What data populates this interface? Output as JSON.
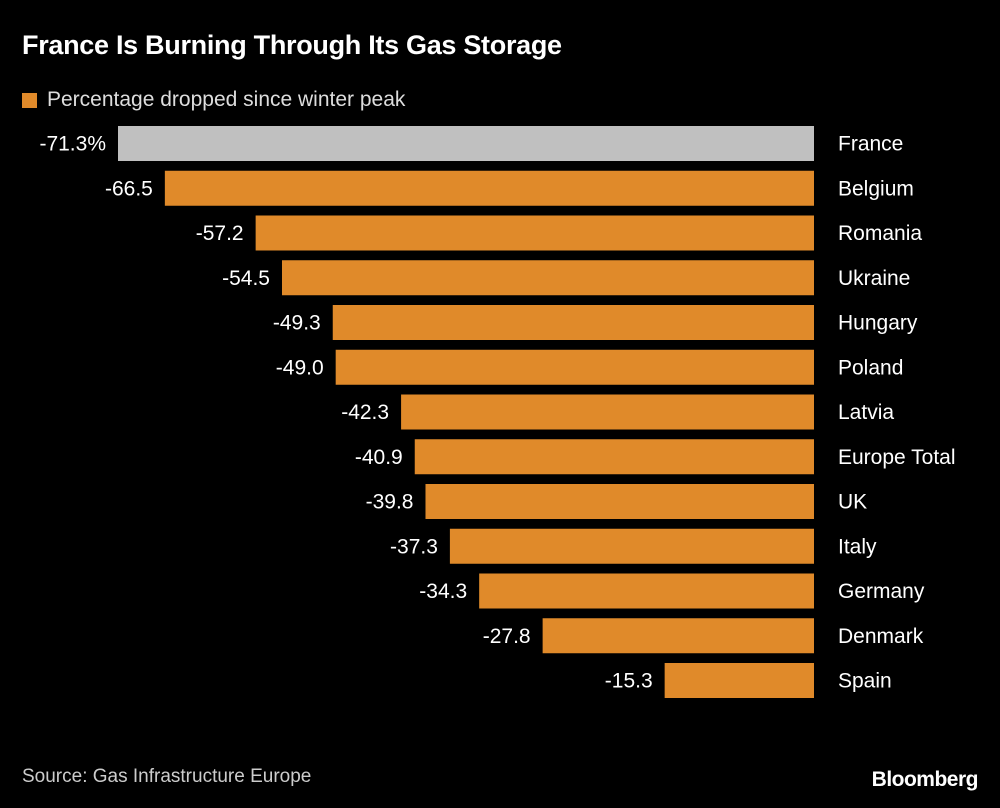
{
  "chart_data": {
    "type": "bar",
    "orientation": "horizontal",
    "title": "France Is Burning Through Its Gas Storage",
    "legend": [
      {
        "name": "Percentage dropped since winter peak",
        "color": "#e08a2a"
      }
    ],
    "categories": [
      "France",
      "Belgium",
      "Romania",
      "Ukraine",
      "Hungary",
      "Poland",
      "Latvia",
      "Europe Total",
      "UK",
      "Italy",
      "Germany",
      "Denmark",
      "Spain"
    ],
    "values": [
      -71.3,
      -66.5,
      -57.2,
      -54.5,
      -49.3,
      -49.0,
      -42.3,
      -40.9,
      -39.8,
      -37.3,
      -34.3,
      -27.8,
      -15.3
    ],
    "value_labels": [
      "-71.3%",
      "-66.5",
      "-57.2",
      "-54.5",
      "-49.3",
      "-49.0",
      "-42.3",
      "-40.9",
      "-39.8",
      "-37.3",
      "-34.3",
      "-27.8",
      "-15.3"
    ],
    "highlight": {
      "category": "France",
      "color": "#c0c0c0"
    },
    "bar_color": "#e08a2a",
    "xlim": [
      -71.3,
      0
    ],
    "grid": false,
    "legend_placement": "top-left"
  },
  "source": "Source: Gas Infrastructure Europe",
  "logo": "Bloomberg"
}
